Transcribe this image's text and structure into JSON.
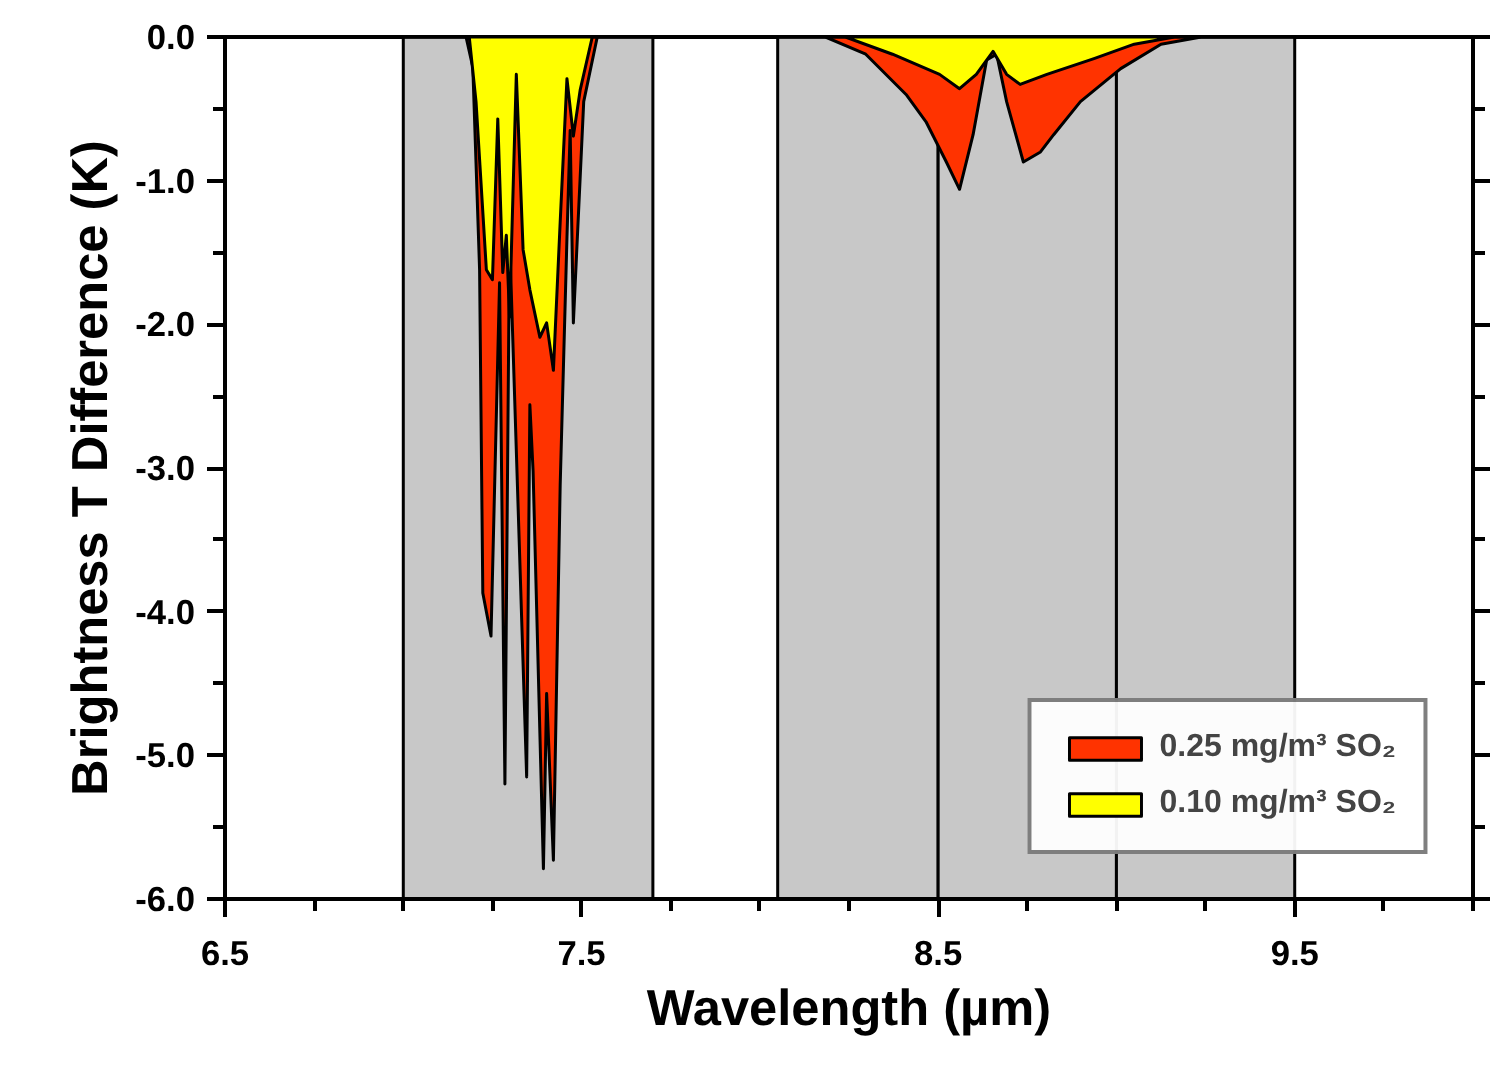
{
  "chart_data": {
    "type": "area",
    "xlabel": "Wavelength (µm)",
    "ylabel": "Brightness T Difference (K)",
    "xlim": [
      6.5,
      10.0
    ],
    "ylim": [
      -6.0,
      0.0
    ],
    "xticks": [
      6.5,
      7.5,
      8.5,
      9.5
    ],
    "yticks": [
      {
        "value": 0,
        "label": "0.0"
      },
      {
        "value": -1,
        "label": "-1.0"
      },
      {
        "value": -2,
        "label": "-2.0"
      },
      {
        "value": -3,
        "label": "-3.0"
      },
      {
        "value": -4,
        "label": "-4.0"
      },
      {
        "value": -5,
        "label": "-5.0"
      },
      {
        "value": -6,
        "label": "-6.0"
      }
    ],
    "grid": false,
    "legend": "bottom right",
    "bands": [
      {
        "axis": "x",
        "from": 7.0,
        "to": 7.7,
        "color": "#c8c8c8"
      },
      {
        "axis": "x",
        "from": 8.05,
        "to": 8.5,
        "color": "#c8c8c8"
      },
      {
        "axis": "x",
        "from": 8.5,
        "to": 9.0,
        "color": "#c8c8c8"
      },
      {
        "axis": "x",
        "from": 9.0,
        "to": 9.5,
        "color": "#c8c8c8"
      }
    ],
    "series": [
      {
        "name": "0.25 mg/m³ SO₂",
        "color": "#ff3300",
        "x": [
          6.5,
          7.176,
          7.195,
          7.214,
          7.223,
          7.246,
          7.27,
          7.285,
          7.298,
          7.346,
          7.355,
          7.364,
          7.393,
          7.402,
          7.421,
          7.44,
          7.459,
          7.468,
          7.477,
          7.506,
          7.544,
          8.184,
          8.297,
          8.41,
          8.466,
          8.523,
          8.56,
          8.598,
          8.636,
          8.664,
          8.692,
          8.739,
          8.787,
          8.824,
          8.899,
          9.012,
          9.125,
          9.238,
          10.0
        ],
        "values": [
          0,
          0,
          -0.21,
          -1.62,
          -3.87,
          -4.17,
          -1.71,
          -5.2,
          -1.39,
          -5.15,
          -2.56,
          -3.02,
          -5.79,
          -4.57,
          -5.73,
          -3.12,
          -1.4,
          -0.65,
          -1.99,
          -0.45,
          0,
          0,
          -0.12,
          -0.4,
          -0.59,
          -0.87,
          -1.06,
          -0.68,
          -0.16,
          -0.12,
          -0.45,
          -0.87,
          -0.8,
          -0.68,
          -0.45,
          -0.22,
          -0.05,
          0,
          0
        ]
      },
      {
        "name": "0.10 mg/m³ SO₂",
        "color": "#ffff00",
        "x": [
          6.5,
          7.185,
          7.204,
          7.233,
          7.25,
          7.265,
          7.279,
          7.289,
          7.298,
          7.317,
          7.336,
          7.355,
          7.383,
          7.402,
          7.421,
          7.44,
          7.459,
          7.477,
          7.496,
          7.53,
          8.24,
          8.372,
          8.504,
          8.56,
          8.607,
          8.654,
          8.692,
          8.73,
          8.805,
          8.937,
          9.05,
          9.163,
          10.0
        ],
        "values": [
          0,
          0,
          -0.45,
          -1.62,
          -1.69,
          -0.57,
          -1.64,
          -1.38,
          -1.95,
          -0.26,
          -1.48,
          -1.76,
          -2.09,
          -1.99,
          -2.32,
          -1.29,
          -0.29,
          -0.69,
          -0.37,
          0,
          0,
          -0.12,
          -0.26,
          -0.36,
          -0.26,
          -0.1,
          -0.26,
          -0.33,
          -0.26,
          -0.15,
          -0.05,
          0,
          0
        ]
      }
    ]
  }
}
